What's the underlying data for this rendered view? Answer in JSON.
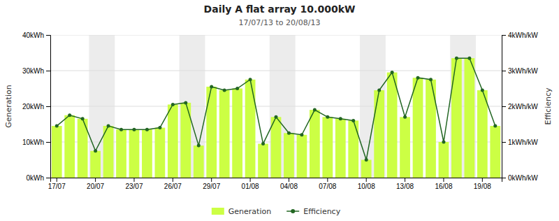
{
  "chart_data": {
    "type": "bar",
    "title": "Daily A flat array 10.000kW",
    "subtitle": "17/07/13 to 20/08/13",
    "ylabel": "Generation",
    "y2label": "Efficiency",
    "categories": [
      "17/07",
      null,
      null,
      "20/07",
      null,
      null,
      "23/07",
      null,
      null,
      "26/07",
      null,
      null,
      "29/07",
      null,
      null,
      "01/08",
      null,
      null,
      "04/08",
      null,
      null,
      "07/08",
      null,
      null,
      "10/08",
      null,
      null,
      "13/08",
      null,
      null,
      "16/08",
      null,
      null,
      "19/08",
      null
    ],
    "series": [
      {
        "name": "Generation",
        "type": "bar",
        "color": "#ccff44",
        "values": [
          14.5,
          17.5,
          16.5,
          7.5,
          14.5,
          13.5,
          13.5,
          13.5,
          14.0,
          20.5,
          21.0,
          9.0,
          25.5,
          24.5,
          25.0,
          27.5,
          9.5,
          17.0,
          12.5,
          12.0,
          19.0,
          17.0,
          16.5,
          16.0,
          5.0,
          24.5,
          29.5,
          17.0,
          28.0,
          27.5,
          10.0,
          33.5,
          33.5,
          24.5,
          14.5
        ]
      },
      {
        "name": "Efficiency",
        "type": "line",
        "color": "#226622",
        "marker": "circle",
        "axis": "y2",
        "values": [
          1.45,
          1.75,
          1.65,
          0.75,
          1.45,
          1.35,
          1.35,
          1.35,
          1.4,
          2.05,
          2.1,
          0.9,
          2.55,
          2.45,
          2.5,
          2.75,
          0.95,
          1.7,
          1.25,
          1.2,
          1.9,
          1.7,
          1.65,
          1.6,
          0.5,
          2.45,
          2.95,
          1.7,
          2.8,
          2.75,
          1.0,
          3.35,
          3.35,
          2.45,
          1.45
        ]
      }
    ],
    "shade_bands": [
      [
        3,
        5
      ],
      [
        10,
        12
      ],
      [
        17,
        19
      ],
      [
        24,
        26
      ],
      [
        31,
        33
      ]
    ],
    "ylim": [
      0,
      40
    ],
    "yticks": [
      {
        "value": 0,
        "label": "0kWh"
      },
      {
        "value": 10,
        "label": "10kWh"
      },
      {
        "value": 20,
        "label": "20kWh"
      },
      {
        "value": 30,
        "label": "30kWh"
      },
      {
        "value": 40,
        "label": "40kWh"
      }
    ],
    "y2lim": [
      0,
      4
    ],
    "y2ticks": [
      {
        "value": 0,
        "label": "0kWh/kW"
      },
      {
        "value": 1,
        "label": "1kWh/kW"
      },
      {
        "value": 2,
        "label": "2kWh/kW"
      },
      {
        "value": 3,
        "label": "3kWh/kW"
      },
      {
        "value": 4,
        "label": "4kWh/kW"
      }
    ],
    "grid": true,
    "legend": "bottom"
  }
}
